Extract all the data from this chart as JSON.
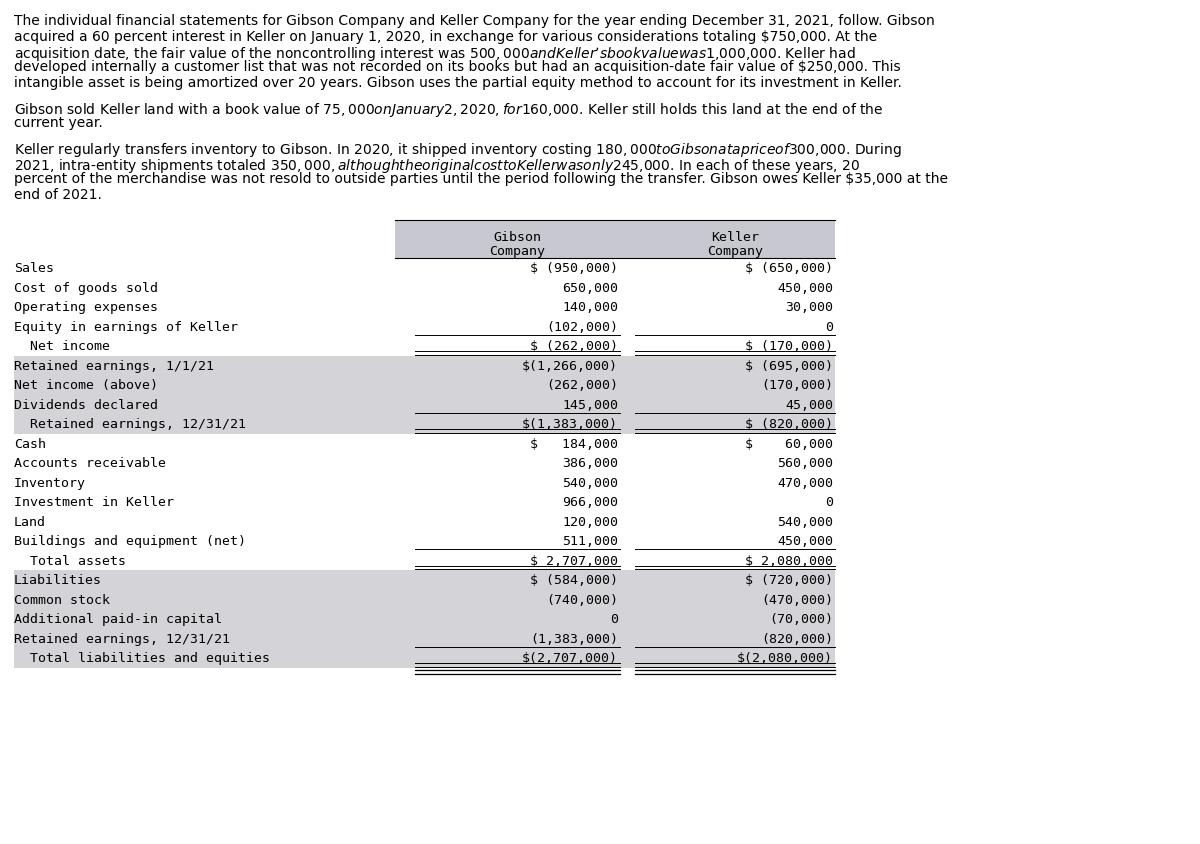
{
  "paragraphs": [
    "The individual financial statements for Gibson Company and Keller Company for the year ending December 31, 2021, follow. Gibson",
    "acquired a 60 percent interest in Keller on January 1, 2020, in exchange for various considerations totaling $750,000. At the",
    "acquisition date, the fair value of the noncontrolling interest was $500,000 and Keller’s book value was $1,000,000. Keller had",
    "developed internally a customer list that was not recorded on its books but had an acquisition-date fair value of $250,000. This",
    "intangible asset is being amortized over 20 years. Gibson uses the partial equity method to account for its investment in Keller.",
    "",
    "Gibson sold Keller land with a book value of $75,000 on January 2, 2020, for $160,000. Keller still holds this land at the end of the",
    "current year.",
    "",
    "Keller regularly transfers inventory to Gibson. In 2020, it shipped inventory costing $180,000 to Gibson at a price of $300,000. During",
    "2021, intra-entity shipments totaled $350,000, although the original cost to Keller was only $245,000. In each of these years, 20",
    "percent of the merchandise was not resold to outside parties until the period following the transfer. Gibson owes Keller $35,000 at the",
    "end of 2021."
  ],
  "table_rows": [
    {
      "label": "Sales",
      "gibson": "$ (950,000)",
      "keller": "$ (650,000)",
      "indent": false,
      "shaded": false,
      "single_under": false,
      "double_under": false
    },
    {
      "label": "Cost of goods sold",
      "gibson": "650,000",
      "keller": "450,000",
      "indent": false,
      "shaded": false,
      "single_under": false,
      "double_under": false
    },
    {
      "label": "Operating expenses",
      "gibson": "140,000",
      "keller": "30,000",
      "indent": false,
      "shaded": false,
      "single_under": false,
      "double_under": false
    },
    {
      "label": "Equity in earnings of Keller",
      "gibson": "(102,000)",
      "keller": "0",
      "indent": false,
      "shaded": false,
      "single_under": true,
      "double_under": false
    },
    {
      "label": "  Net income",
      "gibson": "$ (262,000)",
      "keller": "$ (170,000)",
      "indent": true,
      "shaded": false,
      "single_under": false,
      "double_under": true
    },
    {
      "label": "Retained earnings, 1/1/21",
      "gibson": "$(1,266,000)",
      "keller": "$ (695,000)",
      "indent": false,
      "shaded": true,
      "single_under": false,
      "double_under": false
    },
    {
      "label": "Net income (above)",
      "gibson": "(262,000)",
      "keller": "(170,000)",
      "indent": false,
      "shaded": true,
      "single_under": false,
      "double_under": false
    },
    {
      "label": "Dividends declared",
      "gibson": "145,000",
      "keller": "45,000",
      "indent": false,
      "shaded": true,
      "single_under": true,
      "double_under": false
    },
    {
      "label": "  Retained earnings, 12/31/21",
      "gibson": "$(1,383,000)",
      "keller": "$ (820,000)",
      "indent": true,
      "shaded": true,
      "single_under": false,
      "double_under": true
    },
    {
      "label": "Cash",
      "gibson": "$   184,000",
      "keller": "$    60,000",
      "indent": false,
      "shaded": false,
      "single_under": false,
      "double_under": false
    },
    {
      "label": "Accounts receivable",
      "gibson": "386,000",
      "keller": "560,000",
      "indent": false,
      "shaded": false,
      "single_under": false,
      "double_under": false
    },
    {
      "label": "Inventory",
      "gibson": "540,000",
      "keller": "470,000",
      "indent": false,
      "shaded": false,
      "single_under": false,
      "double_under": false
    },
    {
      "label": "Investment in Keller",
      "gibson": "966,000",
      "keller": "0",
      "indent": false,
      "shaded": false,
      "single_under": false,
      "double_under": false
    },
    {
      "label": "Land",
      "gibson": "120,000",
      "keller": "540,000",
      "indent": false,
      "shaded": false,
      "single_under": false,
      "double_under": false
    },
    {
      "label": "Buildings and equipment (net)",
      "gibson": "511,000",
      "keller": "450,000",
      "indent": false,
      "shaded": false,
      "single_under": true,
      "double_under": false
    },
    {
      "label": "  Total assets",
      "gibson": "$ 2,707,000",
      "keller": "$ 2,080,000",
      "indent": true,
      "shaded": false,
      "single_under": false,
      "double_under": true
    },
    {
      "label": "Liabilities",
      "gibson": "$ (584,000)",
      "keller": "$ (720,000)",
      "indent": false,
      "shaded": true,
      "single_under": false,
      "double_under": false
    },
    {
      "label": "Common stock",
      "gibson": "(740,000)",
      "keller": "(470,000)",
      "indent": false,
      "shaded": true,
      "single_under": false,
      "double_under": false
    },
    {
      "label": "Additional paid-in capital",
      "gibson": "0",
      "keller": "(70,000)",
      "indent": false,
      "shaded": true,
      "single_under": false,
      "double_under": false
    },
    {
      "label": "Retained earnings, 12/31/21",
      "gibson": "(1,383,000)",
      "keller": "(820,000)",
      "indent": false,
      "shaded": true,
      "single_under": true,
      "double_under": false
    },
    {
      "label": "  Total liabilities and equities",
      "gibson": "$(2,707,000)",
      "keller": "$(2,080,000)",
      "indent": true,
      "shaded": true,
      "single_under": false,
      "double_under": true
    }
  ],
  "bg_color": "#ffffff",
  "shaded_color": "#d3d3d8",
  "header_shaded_color": "#c8c8d0",
  "para_fontsize": 10.0,
  "table_fontsize": 9.5
}
